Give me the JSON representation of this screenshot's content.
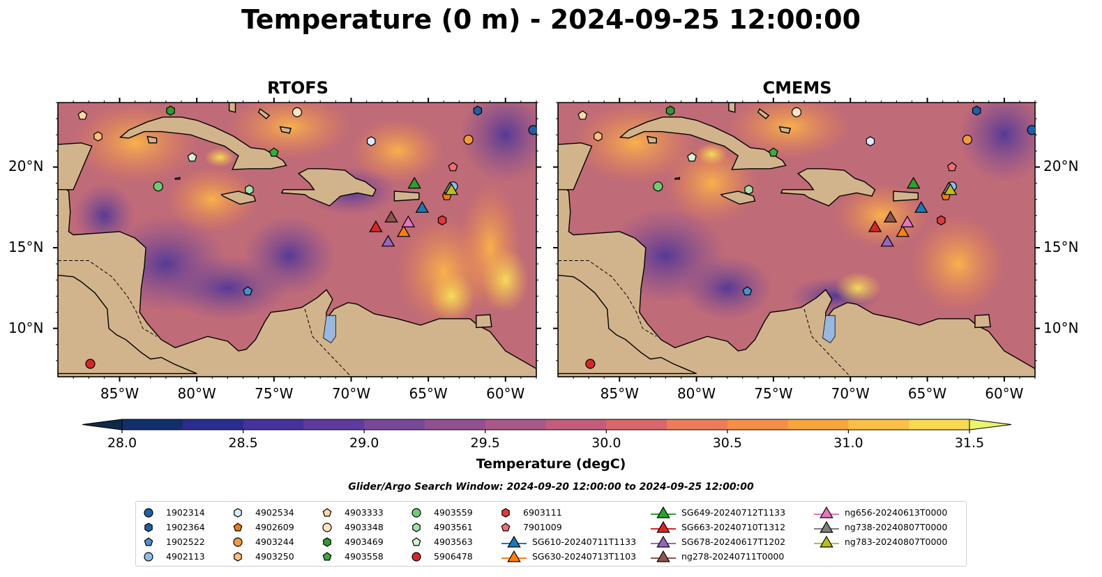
{
  "title": "Temperature (0 m) - 2024-09-25 12:00:00",
  "panels": [
    {
      "name": "RTOFS"
    },
    {
      "name": "CMEMS"
    }
  ],
  "map_extent": {
    "lon": [
      -89,
      -58
    ],
    "lat": [
      7,
      24
    ]
  },
  "lon_ticks": [
    "85°W",
    "80°W",
    "75°W",
    "70°W",
    "65°W",
    "60°W"
  ],
  "lon_tick_values": [
    -85,
    -80,
    -75,
    -70,
    -65,
    -60
  ],
  "lat_ticks": [
    "10°N",
    "15°N",
    "20°N"
  ],
  "lat_tick_values": [
    10,
    15,
    20
  ],
  "colorbar": {
    "label": "Temperature (degC)",
    "ticks": [
      "28.0",
      "28.5",
      "29.0",
      "29.5",
      "30.0",
      "30.5",
      "31.0",
      "31.5"
    ],
    "range": [
      28.0,
      31.5
    ],
    "step": 0.25,
    "colors": [
      "#0e2a4a",
      "#122f6b",
      "#2b2d8c",
      "#46329c",
      "#5e3c9e",
      "#7a4898",
      "#925090",
      "#a85888",
      "#c05e7c",
      "#d8686c",
      "#ec7c5c",
      "#f48f4a",
      "#f8a43f",
      "#fabf46",
      "#f6d950",
      "#e9f56a"
    ]
  },
  "colors": {
    "land": "#d2b48c",
    "lake": "#9ab8de",
    "ocean_base": "#c06b78",
    "coast": "#000000"
  },
  "search_window": "Glider/Argo Search Window: 2024-09-20 12:00:00 to 2024-09-25 12:00:00",
  "legend": [
    {
      "label": "1902314",
      "marker": "circle",
      "color": "#1f5fa8"
    },
    {
      "label": "1902364",
      "marker": "hexagon",
      "color": "#1f5fa8"
    },
    {
      "label": "1902522",
      "marker": "pentagon",
      "color": "#4b8fd0"
    },
    {
      "label": "4902113",
      "marker": "circle",
      "color": "#8dbde8"
    },
    {
      "label": "4902534",
      "marker": "hexagon",
      "color": "#d7ebfb"
    },
    {
      "label": "4902609",
      "marker": "pentagon",
      "color": "#f07a12"
    },
    {
      "label": "4903244",
      "marker": "circle",
      "color": "#f59a3a"
    },
    {
      "label": "4903250",
      "marker": "hexagon",
      "color": "#fbbf80"
    },
    {
      "label": "4903333",
      "marker": "pentagon",
      "color": "#fcd7a8"
    },
    {
      "label": "4903348",
      "marker": "circle",
      "color": "#fde2c4"
    },
    {
      "label": "4903469",
      "marker": "hexagon",
      "color": "#2e9a30"
    },
    {
      "label": "4903558",
      "marker": "pentagon",
      "color": "#3aaa3a"
    },
    {
      "label": "4903559",
      "marker": "circle",
      "color": "#74c975"
    },
    {
      "label": "4903561",
      "marker": "hexagon",
      "color": "#a6e0a6"
    },
    {
      "label": "4903563",
      "marker": "pentagon",
      "color": "#d5f3d5"
    },
    {
      "label": "5906478",
      "marker": "circle",
      "color": "#d62728"
    },
    {
      "label": "6903111",
      "marker": "hexagon",
      "color": "#e0393a"
    },
    {
      "label": "7901009",
      "marker": "pentagon",
      "color": "#f06e70"
    },
    {
      "label": "SG610-20240711T1133",
      "marker": "triangle",
      "color": "#1f77b4"
    },
    {
      "label": "SG630-20240713T1103",
      "marker": "triangle",
      "color": "#ff7f0e"
    },
    {
      "label": "SG649-20240712T1133",
      "marker": "triangle",
      "color": "#2ca02c"
    },
    {
      "label": "SG663-20240710T1312",
      "marker": "triangle",
      "color": "#d62728"
    },
    {
      "label": "SG678-20240617T1202",
      "marker": "triangle",
      "color": "#9467bd"
    },
    {
      "label": "ng278-20240711T0000",
      "marker": "triangle",
      "color": "#8c564b"
    },
    {
      "label": "ng656-20240613T0000",
      "marker": "triangle",
      "color": "#e377c2"
    },
    {
      "label": "ng738-20240807T0000",
      "marker": "triangle",
      "color": "#7f7f7f"
    },
    {
      "label": "ng783-20240807T0000",
      "marker": "triangle",
      "color": "#bcbd22"
    }
  ],
  "observations": [
    {
      "id": "1902314",
      "lon": -58.2,
      "lat": 22.3
    },
    {
      "id": "1902364",
      "lon": -61.8,
      "lat": 23.5
    },
    {
      "id": "1902522",
      "lon": -76.7,
      "lat": 12.3
    },
    {
      "id": "4902113",
      "lon": -63.4,
      "lat": 18.8
    },
    {
      "id": "4902534",
      "lon": -68.7,
      "lat": 21.6
    },
    {
      "id": "4902609",
      "lon": -63.8,
      "lat": 18.2
    },
    {
      "id": "4903244",
      "lon": -62.4,
      "lat": 21.7
    },
    {
      "id": "4903250",
      "lon": -86.4,
      "lat": 21.9
    },
    {
      "id": "4903333",
      "lon": -87.4,
      "lat": 23.2
    },
    {
      "id": "4903348",
      "lon": -73.5,
      "lat": 23.4
    },
    {
      "id": "4903469",
      "lon": -81.7,
      "lat": 23.5
    },
    {
      "id": "4903558",
      "lon": -75.0,
      "lat": 20.9
    },
    {
      "id": "4903559",
      "lon": -82.5,
      "lat": 18.8
    },
    {
      "id": "4903561",
      "lon": -76.6,
      "lat": 18.6
    },
    {
      "id": "4903563",
      "lon": -80.3,
      "lat": 20.6
    },
    {
      "id": "5906478",
      "lon": -86.9,
      "lat": 7.8
    },
    {
      "id": "6903111",
      "lon": -64.1,
      "lat": 16.7
    },
    {
      "id": "7901009",
      "lon": -63.4,
      "lat": 20.0
    },
    {
      "id": "SG610-20240711T1133",
      "lon": -65.4,
      "lat": 17.5
    },
    {
      "id": "SG630-20240713T1103",
      "lon": -66.6,
      "lat": 16.0
    },
    {
      "id": "SG649-20240712T1133",
      "lon": -65.9,
      "lat": 19.0
    },
    {
      "id": "SG663-20240710T1312",
      "lon": -68.4,
      "lat": 16.3
    },
    {
      "id": "SG678-20240617T1202",
      "lon": -67.6,
      "lat": 15.4
    },
    {
      "id": "ng278-20240711T0000",
      "lon": -67.4,
      "lat": 16.9
    },
    {
      "id": "ng656-20240613T0000",
      "lon": -66.3,
      "lat": 16.6
    },
    {
      "id": "ng738-20240807T0000",
      "lon": -63.6,
      "lat": 18.7
    },
    {
      "id": "ng783-20240807T0000",
      "lon": -63.5,
      "lat": 18.6
    }
  ]
}
